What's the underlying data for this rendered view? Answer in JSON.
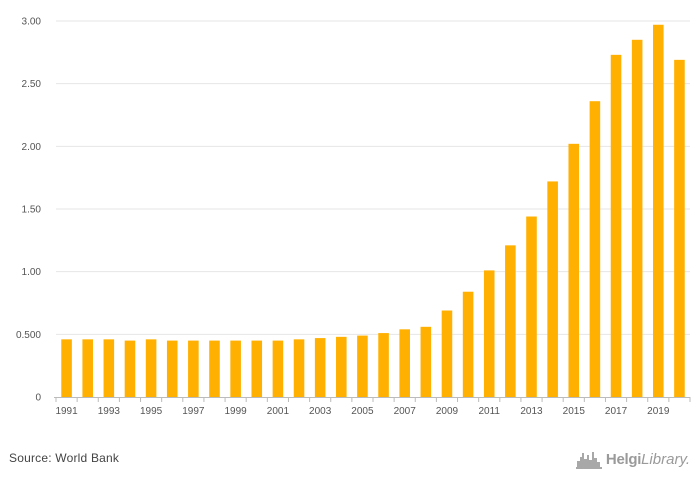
{
  "chart_data": {
    "type": "bar",
    "title": "",
    "xlabel": "",
    "ylabel": "",
    "ylim": [
      0,
      3.0
    ],
    "yticks": [
      0,
      0.5,
      1.0,
      1.5,
      2.0,
      2.5,
      3.0
    ],
    "ytick_labels": [
      "0",
      "0.500",
      "1.00",
      "1.50",
      "2.00",
      "2.50",
      "3.00"
    ],
    "categories": [
      "1991",
      "1992",
      "1993",
      "1994",
      "1995",
      "1996",
      "1997",
      "1998",
      "1999",
      "2000",
      "2001",
      "2002",
      "2003",
      "2004",
      "2005",
      "2006",
      "2007",
      "2008",
      "2009",
      "2010",
      "2011",
      "2012",
      "2013",
      "2014",
      "2015",
      "2016",
      "2017",
      "2018",
      "2019",
      "2020"
    ],
    "xtick_labels": [
      "1991",
      "1993",
      "1995",
      "1997",
      "1999",
      "2001",
      "2003",
      "2005",
      "2007",
      "2009",
      "2011",
      "2013",
      "2015",
      "2017",
      "2019"
    ],
    "values": [
      0.46,
      0.46,
      0.46,
      0.45,
      0.46,
      0.45,
      0.45,
      0.45,
      0.45,
      0.45,
      0.45,
      0.46,
      0.47,
      0.48,
      0.49,
      0.51,
      0.54,
      0.56,
      0.69,
      0.84,
      1.01,
      1.21,
      1.44,
      1.72,
      2.02,
      2.36,
      2.73,
      2.85,
      2.97,
      2.69
    ],
    "bar_color": "#FFB000",
    "grid": true
  },
  "footer": {
    "source": "Source: World Bank",
    "logo_main": "Helgi",
    "logo_sub": "Library."
  },
  "colors": {
    "grid": "#e6e6e6",
    "axis": "#bbbbbb"
  }
}
